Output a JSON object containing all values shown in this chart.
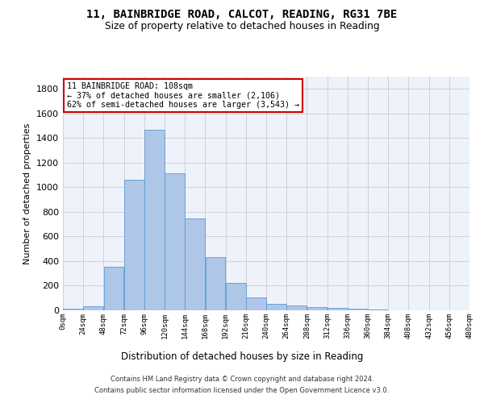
{
  "title_line1": "11, BAINBRIDGE ROAD, CALCOT, READING, RG31 7BE",
  "title_line2": "Size of property relative to detached houses in Reading",
  "xlabel": "Distribution of detached houses by size in Reading",
  "ylabel": "Number of detached properties",
  "bin_edges": [
    0,
    24,
    48,
    72,
    96,
    120,
    144,
    168,
    192,
    216,
    240,
    264,
    288,
    312,
    336,
    360,
    384,
    408,
    432,
    456,
    480
  ],
  "bar_heights": [
    10,
    35,
    355,
    1060,
    1470,
    1115,
    750,
    435,
    222,
    108,
    50,
    40,
    28,
    20,
    10,
    5,
    3,
    2,
    1,
    0
  ],
  "bar_color": "#aec6e8",
  "bar_edgecolor": "#5b9bd5",
  "ylim": [
    0,
    1900
  ],
  "yticks": [
    0,
    200,
    400,
    600,
    800,
    1000,
    1200,
    1400,
    1600,
    1800
  ],
  "xtick_labels": [
    "0sqm",
    "24sqm",
    "48sqm",
    "72sqm",
    "96sqm",
    "120sqm",
    "144sqm",
    "168sqm",
    "192sqm",
    "216sqm",
    "240sqm",
    "264sqm",
    "288sqm",
    "312sqm",
    "336sqm",
    "360sqm",
    "384sqm",
    "408sqm",
    "432sqm",
    "456sqm",
    "480sqm"
  ],
  "annotation_line1": "11 BAINBRIDGE ROAD: 108sqm",
  "annotation_line2": "← 37% of detached houses are smaller (2,106)",
  "annotation_line3": "62% of semi-detached houses are larger (3,543) →",
  "annotation_box_edgecolor": "#cc0000",
  "grid_color": "#cccccc",
  "background_color": "#eef2fa",
  "footer_line1": "Contains HM Land Registry data © Crown copyright and database right 2024.",
  "footer_line2": "Contains public sector information licensed under the Open Government Licence v3.0."
}
